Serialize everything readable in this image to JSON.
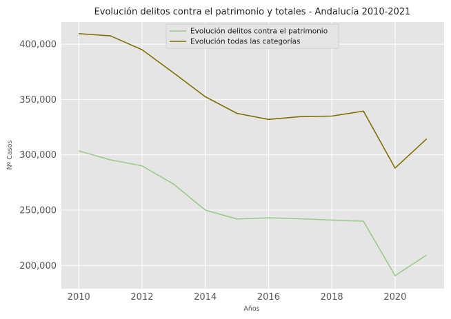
{
  "chart_data": {
    "type": "line",
    "title": "Evolución delitos contra el patrimonio y totales - Andalucía 2010-2021",
    "xlabel": "Años",
    "ylabel": "Nº Casos",
    "x": [
      2010,
      2011,
      2012,
      2013,
      2014,
      2015,
      2016,
      2017,
      2018,
      2019,
      2020,
      2021
    ],
    "xlim": [
      2009.45,
      2021.55
    ],
    "ylim": [
      179000,
      420000
    ],
    "x_ticks": [
      2010,
      2012,
      2014,
      2016,
      2018,
      2020
    ],
    "x_tick_labels": [
      "2010",
      "2012",
      "2014",
      "2016",
      "2018",
      "2020"
    ],
    "y_ticks": [
      200000,
      250000,
      300000,
      350000,
      400000
    ],
    "y_tick_labels": [
      "200,000",
      "250,000",
      "300,000",
      "350,000",
      "400,000"
    ],
    "grid": true,
    "legend_position": "top-center",
    "series": [
      {
        "name": "Evolución delitos contra el patrimonio",
        "color": "#9dc98b",
        "values": [
          303500,
          295500,
          290000,
          273500,
          250000,
          242000,
          243000,
          242200,
          241000,
          240000,
          190800,
          209500
        ]
      },
      {
        "name": "Evolución todas las categorías",
        "color": "#7d6f00",
        "values": [
          409500,
          407500,
          395000,
          374000,
          352500,
          337500,
          332000,
          334500,
          335000,
          339500,
          288000,
          314500
        ]
      }
    ],
    "colors": {
      "plot_background": "#e5e5e5",
      "grid": "#ffffff",
      "tick_text": "#555555"
    }
  }
}
